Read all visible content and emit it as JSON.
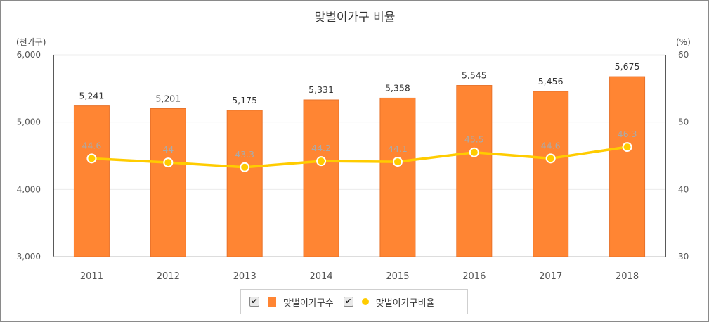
{
  "chart_data": {
    "type": "bar",
    "title": "맞벌이가구 비율",
    "categories": [
      "2011",
      "2012",
      "2013",
      "2014",
      "2015",
      "2016",
      "2017",
      "2018"
    ],
    "series": [
      {
        "name": "맞벌이가구수",
        "type": "bar",
        "axis": "left",
        "color": "#FF8533",
        "values": [
          5241,
          5201,
          5175,
          5331,
          5358,
          5545,
          5456,
          5675
        ],
        "labels": [
          "5,241",
          "5,201",
          "5,175",
          "5,331",
          "5,358",
          "5,545",
          "5,456",
          "5,675"
        ]
      },
      {
        "name": "맞벌이가구비율",
        "type": "line",
        "axis": "right",
        "color": "#FFCC00",
        "values": [
          44.6,
          44,
          43.3,
          44.2,
          44.1,
          45.5,
          44.6,
          46.3
        ],
        "labels": [
          "44.6",
          "44",
          "43.3",
          "44.2",
          "44.1",
          "45.5",
          "44.6",
          "46.3"
        ]
      }
    ],
    "y_left": {
      "unit": "(천가구)",
      "ylim": [
        3000,
        6000
      ],
      "ticks": [
        3000,
        4000,
        5000,
        6000
      ],
      "tick_labels": [
        "3,000",
        "4,000",
        "5,000",
        "6,000"
      ]
    },
    "y_right": {
      "unit": "(%)",
      "ylim": [
        30,
        60
      ],
      "ticks": [
        30,
        40,
        50,
        60
      ],
      "tick_labels": [
        "30",
        "40",
        "50",
        "60"
      ]
    },
    "grid": true,
    "legend_position": "bottom-center"
  },
  "legend": {
    "items": [
      {
        "label": "맞벌이가구수",
        "check": "✔"
      },
      {
        "label": "맞벌이가구비율",
        "check": "✔"
      }
    ]
  }
}
